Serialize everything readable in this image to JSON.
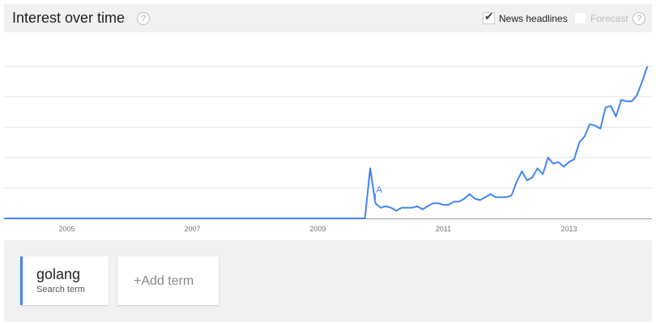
{
  "header": {
    "title": "Interest over time",
    "help": "?",
    "news_headlines": "News headlines",
    "news_checked": true,
    "forecast": "Forecast",
    "forecast_checked": false
  },
  "chart_data": {
    "type": "line",
    "title": "Interest over time",
    "x_start": "2004-01",
    "x_step": "month",
    "x_tick_labels": [
      "2005",
      "2007",
      "2009",
      "2011",
      "2013"
    ],
    "ylim": [
      0,
      100
    ],
    "grid": true,
    "y_gridline_step": 20,
    "series": [
      {
        "name": "golang",
        "color": "#4285f4",
        "values": [
          0,
          0,
          0,
          0,
          0,
          0,
          0,
          0,
          0,
          0,
          0,
          0,
          0,
          0,
          0,
          0,
          0,
          0,
          0,
          0,
          0,
          0,
          0,
          0,
          0,
          0,
          0,
          0,
          0,
          0,
          0,
          0,
          0,
          0,
          0,
          0,
          0,
          0,
          0,
          0,
          0,
          0,
          0,
          0,
          0,
          0,
          0,
          0,
          0,
          0,
          0,
          0,
          0,
          0,
          0,
          0,
          0,
          0,
          0,
          0,
          0,
          0,
          0,
          0,
          0,
          0,
          0,
          0,
          0,
          0,
          33,
          10,
          7,
          8,
          7,
          5,
          7,
          7,
          7,
          8,
          6,
          8,
          10,
          10,
          9,
          9,
          11,
          11,
          13,
          16,
          13,
          12,
          14,
          16,
          14,
          14,
          14,
          15,
          24,
          31,
          25,
          27,
          33,
          29,
          40,
          36,
          37,
          34,
          37,
          39,
          50,
          54,
          62,
          61,
          59,
          73,
          74,
          67,
          78,
          77,
          77,
          81,
          90,
          100
        ]
      }
    ],
    "annotations": [
      {
        "label": "A",
        "date": "2009-12"
      }
    ]
  },
  "terms": [
    {
      "name": "golang",
      "type": "Search term",
      "color": "#4285f4"
    }
  ],
  "add_term": {
    "plus": "+",
    "label": "Add term"
  }
}
